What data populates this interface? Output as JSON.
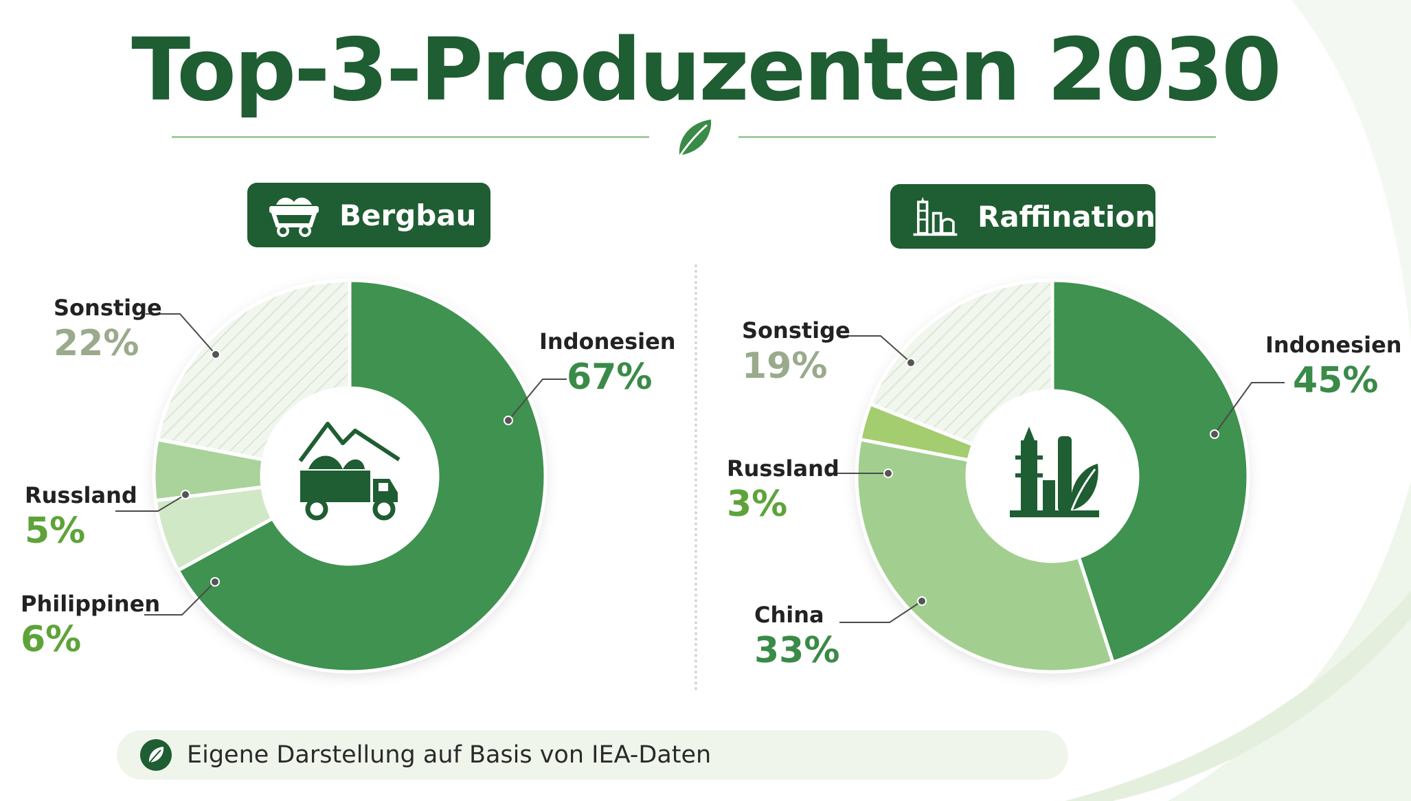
{
  "title": "Top-3-Produzenten 2030",
  "colors": {
    "primary": "#1f5d32",
    "indonesia": "#3f9250",
    "china": "#a2cf8f",
    "russia_mining": "#a9d39a",
    "russia_refining": "#a3cd6e",
    "philippines": "#d1e8c7",
    "other": "#eef4ea"
  },
  "footer": {
    "text": "Eigene Darstellung auf Basis von IEA-Daten",
    "icon": "leaf-icon"
  },
  "chart_data": [
    {
      "type": "pie",
      "title": "Bergbau",
      "icon": "mining-cart-icon",
      "center_icon": "dump-truck-mountain-icon",
      "slices": [
        {
          "label": "Indonesien",
          "value": 67,
          "pct_text": "67%",
          "color": "#3f9250",
          "pct_color": "#3a8a48"
        },
        {
          "label": "Philippinen",
          "value": 6,
          "pct_text": "6%",
          "color": "#d1e8c7",
          "pct_color": "#5ea33a"
        },
        {
          "label": "Russland",
          "value": 5,
          "pct_text": "5%",
          "color": "#a9d39a",
          "pct_color": "#5ea33a"
        },
        {
          "label": "Sonstige",
          "value": 22,
          "pct_text": "22%",
          "color": "#eef4ea",
          "pct_color": "#9aaa8c",
          "hatched": true
        }
      ]
    },
    {
      "type": "pie",
      "title": "Raffination",
      "icon": "refinery-icon",
      "center_icon": "refinery-leaf-icon",
      "slices": [
        {
          "label": "Indonesien",
          "value": 45,
          "pct_text": "45%",
          "color": "#3f9250",
          "pct_color": "#3a8a48"
        },
        {
          "label": "China",
          "value": 33,
          "pct_text": "33%",
          "color": "#a2cf8f",
          "pct_color": "#3a8a48"
        },
        {
          "label": "Russland",
          "value": 3,
          "pct_text": "3%",
          "color": "#a3cd6e",
          "pct_color": "#5ea33a"
        },
        {
          "label": "Sonstige",
          "value": 19,
          "pct_text": "19%",
          "color": "#eef4ea",
          "pct_color": "#9aaa8c",
          "hatched": true
        }
      ]
    }
  ]
}
